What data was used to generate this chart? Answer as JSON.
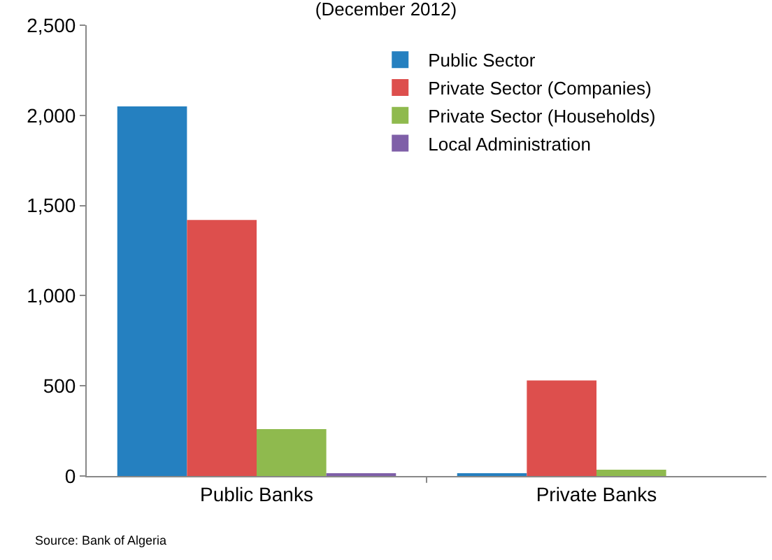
{
  "chart_data": {
    "type": "bar",
    "title": "(December 2012)",
    "categories": [
      "Public Banks",
      "Private Banks"
    ],
    "series": [
      {
        "name": "Public Sector",
        "color": "#2580c0",
        "values": [
          2050,
          10
        ]
      },
      {
        "name": "Private Sector (Companies)",
        "color": "#dd4f4d",
        "values": [
          1420,
          530
        ]
      },
      {
        "name": "Private Sector (Households)",
        "color": "#8fba4e",
        "values": [
          260,
          35
        ]
      },
      {
        "name": "Local Administration",
        "color": "#7f5fa8",
        "values": [
          10,
          0
        ]
      }
    ],
    "ylim": [
      0,
      2500
    ],
    "yticks": [
      {
        "value": 0,
        "label": "0"
      },
      {
        "value": 500,
        "label": "500"
      },
      {
        "value": 1000,
        "label": "1,000"
      },
      {
        "value": 1500,
        "label": "1,500"
      },
      {
        "value": 2000,
        "label": "2,000"
      },
      {
        "value": 2500,
        "label": "2,500"
      }
    ],
    "grid": false,
    "legend": "top right",
    "annotations": [
      "Source: Bank of Algeria"
    ]
  }
}
